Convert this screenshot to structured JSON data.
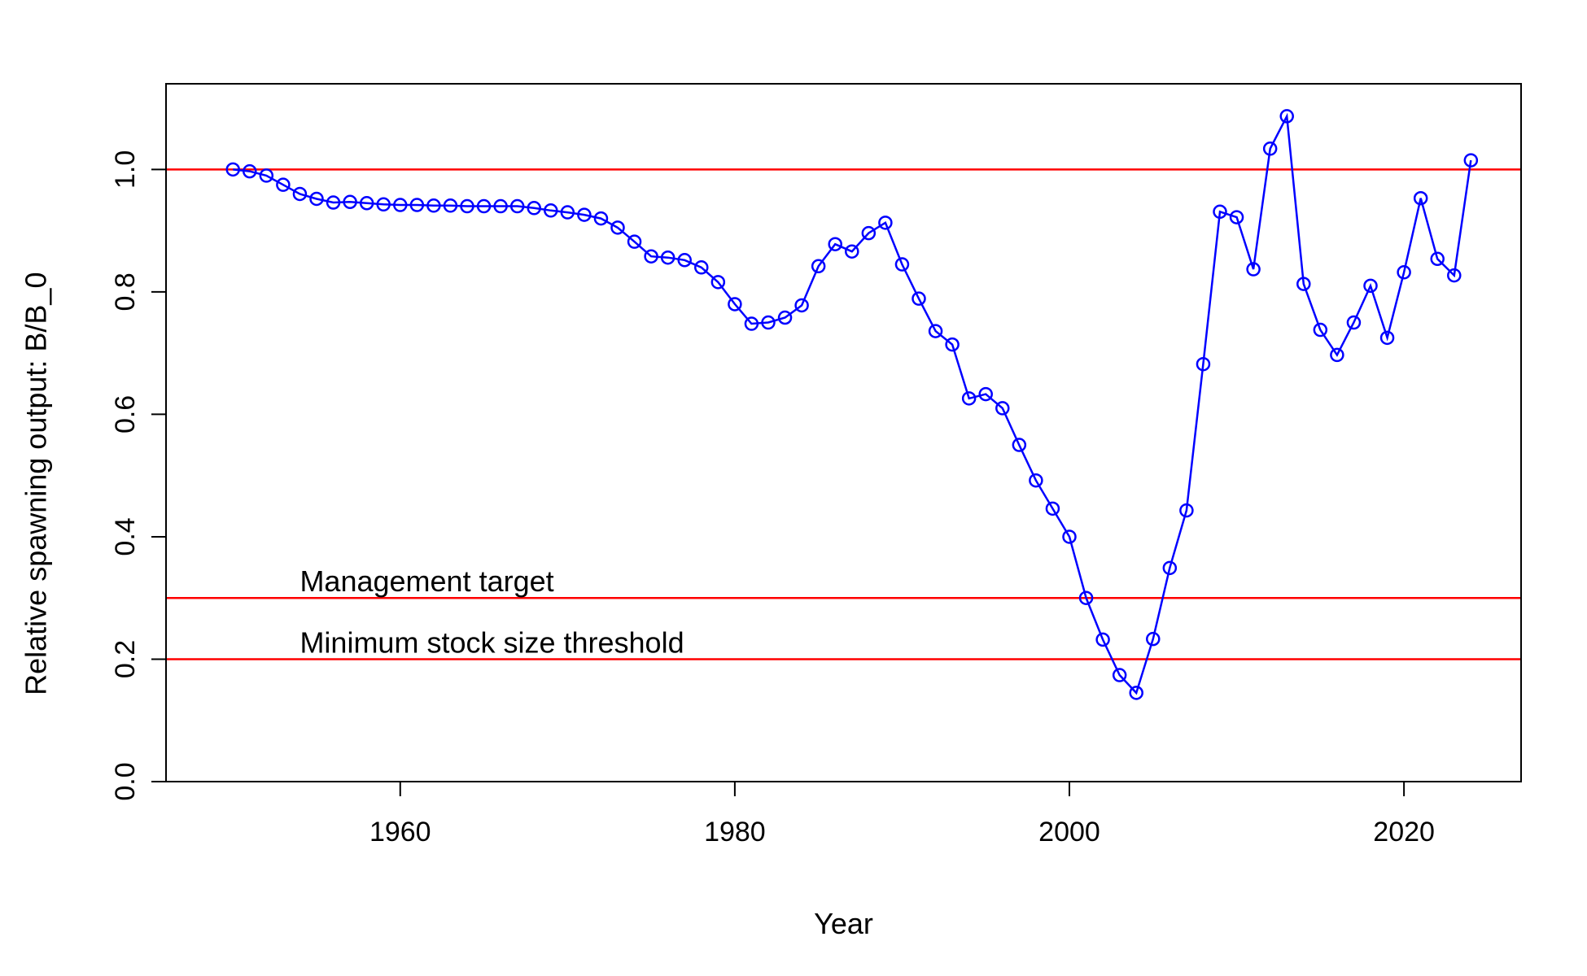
{
  "chart_data": {
    "type": "line",
    "title": "",
    "xlabel": "Year",
    "ylabel": "Relative spawning output: B/B_0",
    "xlim": [
      1946,
      2027
    ],
    "ylim": [
      0,
      1.14
    ],
    "x_ticks": [
      1960,
      1980,
      2000,
      2020
    ],
    "y_ticks": [
      0.0,
      0.2,
      0.4,
      0.6,
      0.8,
      1.0
    ],
    "x_tick_labels": [
      "1960",
      "1980",
      "2000",
      "2020"
    ],
    "y_tick_labels": [
      "0.0",
      "0.2",
      "0.4",
      "0.6",
      "0.8",
      "1.0"
    ],
    "grid": false,
    "legend": "none",
    "series": [
      {
        "color": "#0000ff",
        "marker": "open-circle",
        "x": [
          1950,
          1951,
          1952,
          1953,
          1954,
          1955,
          1956,
          1957,
          1958,
          1959,
          1960,
          1961,
          1962,
          1963,
          1964,
          1965,
          1966,
          1967,
          1968,
          1969,
          1970,
          1971,
          1972,
          1973,
          1974,
          1975,
          1976,
          1977,
          1978,
          1979,
          1980,
          1981,
          1982,
          1983,
          1984,
          1985,
          1986,
          1987,
          1988,
          1989,
          1990,
          1991,
          1992,
          1993,
          1994,
          1995,
          1996,
          1997,
          1998,
          1999,
          2000,
          2001,
          2002,
          2003,
          2004,
          2005,
          2006,
          2007,
          2008,
          2009,
          2010,
          2011,
          2012,
          2013,
          2014,
          2015,
          2016,
          2017,
          2018,
          2019,
          2020,
          2021,
          2022,
          2023,
          2024
        ],
        "y": [
          1.0,
          0.997,
          0.99,
          0.975,
          0.96,
          0.952,
          0.946,
          0.947,
          0.945,
          0.943,
          0.942,
          0.942,
          0.941,
          0.941,
          0.94,
          0.94,
          0.94,
          0.94,
          0.937,
          0.933,
          0.93,
          0.926,
          0.92,
          0.905,
          0.882,
          0.858,
          0.856,
          0.852,
          0.84,
          0.816,
          0.78,
          0.748,
          0.75,
          0.758,
          0.778,
          0.842,
          0.878,
          0.866,
          0.896,
          0.913,
          0.845,
          0.789,
          0.736,
          0.714,
          0.626,
          0.633,
          0.61,
          0.55,
          0.492,
          0.446,
          0.4,
          0.3,
          0.232,
          0.174,
          0.145,
          0.233,
          0.349,
          0.443,
          0.682,
          0.931,
          0.922,
          0.837,
          1.034,
          1.087,
          0.813,
          0.738,
          0.697,
          0.75,
          0.81,
          0.725,
          0.832,
          0.953,
          0.854,
          0.827,
          1.015
        ]
      }
    ],
    "reference_lines": [
      {
        "y": 1.0,
        "color": "#ff0000",
        "label": ""
      },
      {
        "y": 0.3,
        "color": "#ff0000",
        "label": "Management target",
        "label_x": 1954
      },
      {
        "y": 0.2,
        "color": "#ff0000",
        "label": "Minimum stock size threshold",
        "label_x": 1954
      }
    ]
  }
}
